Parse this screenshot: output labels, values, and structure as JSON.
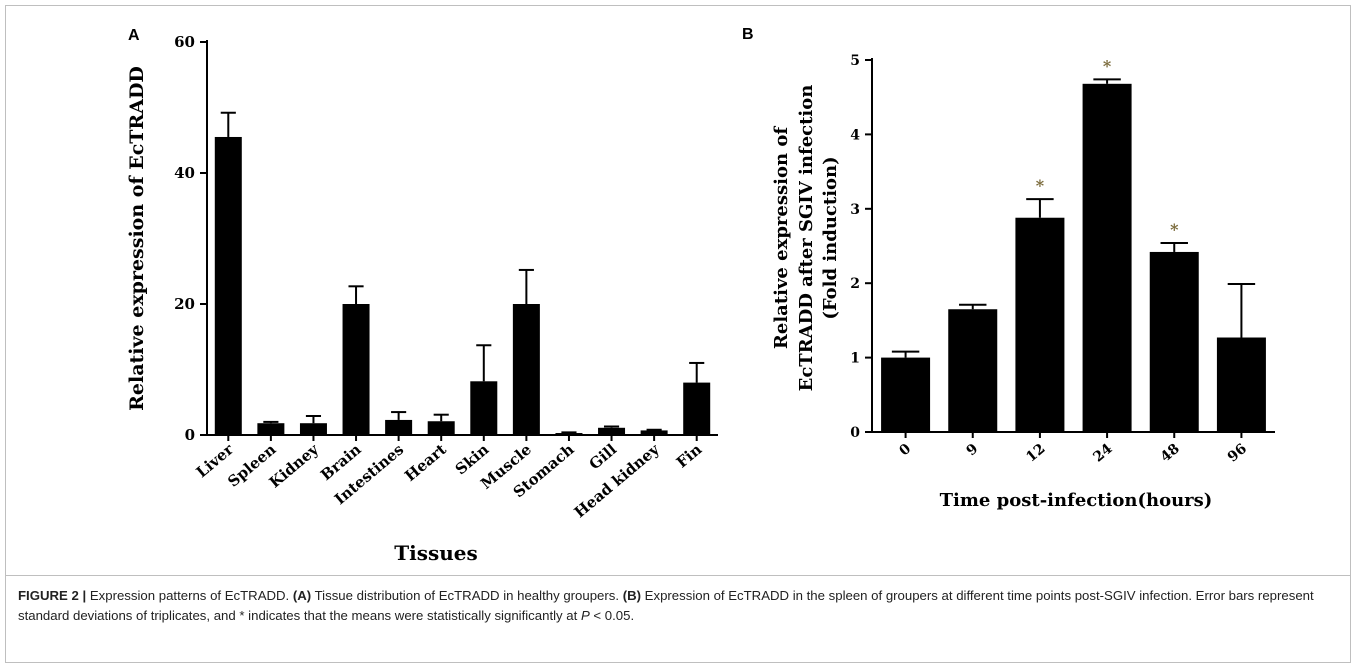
{
  "chart_data": [
    {
      "type": "bar",
      "panel_label": "A",
      "title": "",
      "xlabel": "Tissues",
      "ylabel": "Relative expression of EcTRADD",
      "ylim": [
        0,
        60
      ],
      "yticks": [
        "0",
        "20",
        "40",
        "60"
      ],
      "ytick_values": [
        0,
        20,
        40,
        60
      ],
      "categories": [
        "Liver",
        "Spleen",
        "Kidney",
        "Brain",
        "Intestines",
        "Heart",
        "Skin",
        "Muscle",
        "Stomach",
        "Gill",
        "Head kidney",
        "Fin"
      ],
      "values": [
        45.5,
        1.8,
        1.8,
        20.0,
        2.3,
        2.1,
        8.2,
        20.0,
        0.3,
        1.1,
        0.7,
        8.0
      ],
      "errors": [
        3.7,
        0.2,
        1.1,
        2.7,
        1.2,
        1.0,
        5.5,
        5.2,
        0.1,
        0.2,
        0.1,
        3.0
      ],
      "bar_color": "#000000",
      "grid": false,
      "legend": "none"
    },
    {
      "type": "bar",
      "panel_label": "B",
      "title": "",
      "xlabel": "Time post-infection(hours)",
      "ylabel_lines": [
        "Relative expression of",
        "EcTRADD after SGIV infection",
        "(Fold induction)"
      ],
      "ylim": [
        0,
        5
      ],
      "yticks": [
        "0",
        "1",
        "2",
        "3",
        "4",
        "5"
      ],
      "ytick_values": [
        0,
        1,
        2,
        3,
        4,
        5
      ],
      "categories": [
        "0",
        "9",
        "12",
        "24",
        "48",
        "96"
      ],
      "values": [
        1.0,
        1.65,
        2.88,
        4.68,
        2.42,
        1.27
      ],
      "errors": [
        0.08,
        0.06,
        0.25,
        0.06,
        0.12,
        0.72
      ],
      "significant": [
        false,
        false,
        true,
        true,
        true,
        false
      ],
      "significance_marker": "*",
      "significance_color": "#7a6a3a",
      "bar_color": "#000000",
      "grid": false,
      "legend": "none"
    }
  ],
  "caption": {
    "figure_number": "FIGURE 2 |",
    "text_1": " Expression patterns of EcTRADD. ",
    "label_a": "(A)",
    "text_2": " Tissue distribution of EcTRADD in healthy groupers. ",
    "label_b": "(B)",
    "text_3": " Expression of EcTRADD in the spleen of groupers at different time points post-SGIV infection. Error bars represent standard deviations of triplicates, and * indicates that the means were statistically significantly at ",
    "p_symbol": "P",
    "text_4": " < 0.05."
  }
}
